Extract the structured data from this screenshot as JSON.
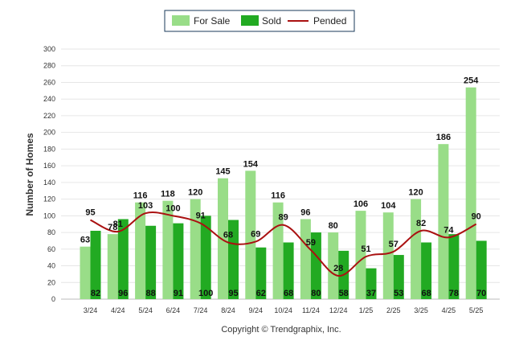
{
  "chart_data": {
    "type": "bar",
    "categories": [
      "3/24",
      "4/24",
      "5/24",
      "6/24",
      "7/24",
      "8/24",
      "9/24",
      "10/24",
      "11/24",
      "12/24",
      "1/25",
      "2/25",
      "3/25",
      "4/25",
      "5/25"
    ],
    "series": [
      {
        "name": "For Sale",
        "kind": "bar",
        "color": "#99dd88",
        "values": [
          63,
          78,
          116,
          118,
          120,
          145,
          154,
          116,
          96,
          80,
          106,
          104,
          120,
          186,
          254
        ]
      },
      {
        "name": "Sold",
        "kind": "bar",
        "color": "#22aa22",
        "values": [
          82,
          96,
          88,
          91,
          100,
          95,
          62,
          68,
          80,
          58,
          37,
          53,
          68,
          78,
          70
        ]
      },
      {
        "name": "Pended",
        "kind": "line",
        "color": "#aa1111",
        "values": [
          95,
          81,
          103,
          100,
          91,
          68,
          69,
          89,
          59,
          28,
          51,
          57,
          82,
          74,
          90
        ]
      }
    ],
    "ylabel": "Number of Homes",
    "ylim": [
      0,
      300
    ],
    "yticks": [
      "0",
      "20",
      "40",
      "60",
      "80",
      "100",
      "120",
      "140",
      "160",
      "180",
      "200",
      "220",
      "240",
      "260",
      "280",
      "300"
    ],
    "grid": true,
    "legend_position": "top"
  },
  "legend": {
    "items": [
      "For Sale",
      "Sold",
      "Pended"
    ]
  },
  "credit": "Copyright © Trendgraphix, Inc."
}
